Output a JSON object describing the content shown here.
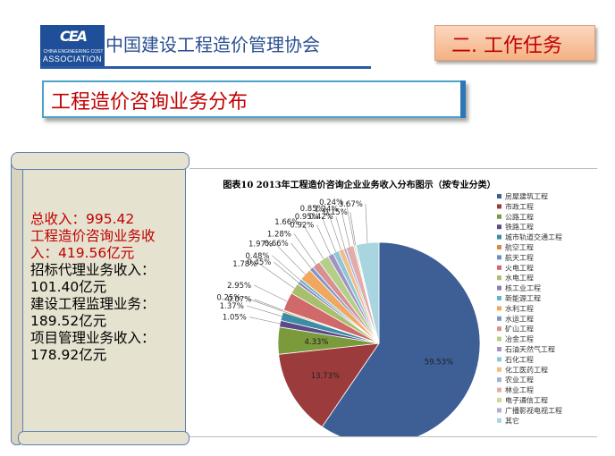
{
  "header": {
    "logo_mark": "CEA",
    "logo_sub1": "CHINA ENGINEERING COST",
    "logo_sub2": "ASSOCIATION",
    "org_name": "中国建设工程造价管理协会",
    "section_tab": "二. 工作任务"
  },
  "slide_title": "工程造价咨询业务分布",
  "scroll": {
    "lines_red": [
      "总收入：995.42",
      "工程造价咨询业务收",
      "入：419.56亿元"
    ],
    "lines_black": [
      "招标代理业务收入：",
      "101.40亿元",
      "建设工程监理业务：",
      "189.52亿元",
      "项目管理业务收入：",
      "178.92亿元"
    ]
  },
  "colors": {
    "title_red": "#c00000",
    "blue": "#2a4f90"
  },
  "chart_data": {
    "type": "pie",
    "title": "图表10   2013年工程造价咨询企业业务收入分布图示（按专业分类）",
    "legend_position": "right",
    "categories": [
      "房屋建筑工程",
      "市政工程",
      "公路工程",
      "铁路工程",
      "城市轨道交通工程",
      "航空工程",
      "航天工程",
      "火电工程",
      "水电工程",
      "核工业工程",
      "新能源工程",
      "水利工程",
      "水运工程",
      "矿山工程",
      "冶金工程",
      "石油天然气工程",
      "石化工程",
      "化工医药工程",
      "农业工程",
      "林业工程",
      "电子通信工程",
      "广播影视电视工程",
      "其它"
    ],
    "values": [
      59.53,
      13.73,
      4.33,
      1.05,
      1.37,
      0.25,
      0.07,
      2.95,
      1.78,
      0.45,
      0.48,
      1.97,
      0.66,
      1.28,
      1.66,
      0.92,
      0.95,
      0.85,
      0.42,
      1.24,
      0.24,
      0.15,
      3.67
    ],
    "labels": [
      "59.53%",
      "13.73%",
      "4.33%",
      "1.05%",
      "1.37%",
      "0.25%",
      "0.07%",
      "2.95%",
      "1.78%",
      "0.45%",
      "0.48%",
      "1.97%",
      "0.66%",
      "1.28%",
      "1.66%",
      "0.92%",
      "0.95%",
      "0.85%",
      "0.42%",
      "1.24%",
      "0.24%",
      "0.15%",
      "3.67%"
    ],
    "colors": [
      "#3d5f95",
      "#9b3b3b",
      "#7a9a3c",
      "#5b4a87",
      "#3c8ca5",
      "#d98a3c",
      "#6f8fc4",
      "#d06a6a",
      "#a8c06e",
      "#8e7ab5",
      "#69b3c8",
      "#f0a860",
      "#7f96c6",
      "#d99090",
      "#b5cf8a",
      "#a393c4",
      "#8fc7d6",
      "#f3bd8a",
      "#9fb1d6",
      "#e3acac",
      "#c6da9e",
      "#b7abd2",
      "#a9d5e0"
    ]
  }
}
